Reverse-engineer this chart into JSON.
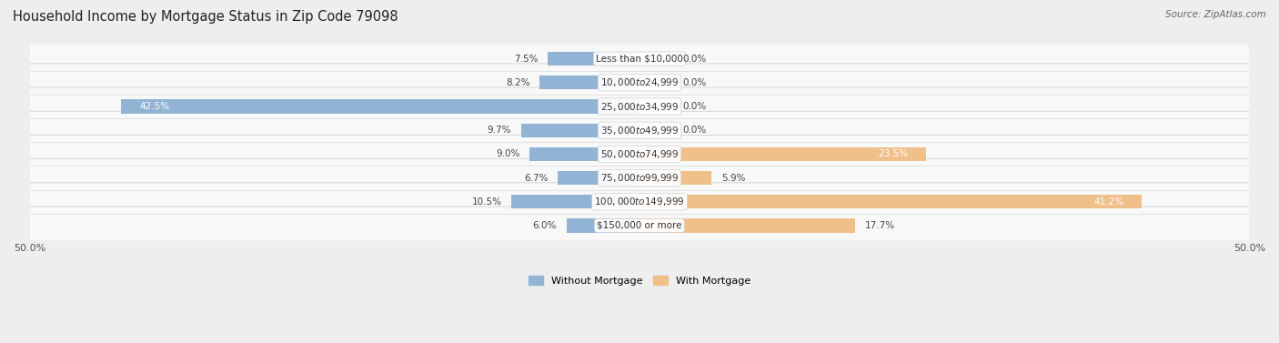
{
  "title": "Household Income by Mortgage Status in Zip Code 79098",
  "source": "Source: ZipAtlas.com",
  "categories": [
    "Less than $10,000",
    "$10,000 to $24,999",
    "$25,000 to $34,999",
    "$35,000 to $49,999",
    "$50,000 to $74,999",
    "$75,000 to $99,999",
    "$100,000 to $149,999",
    "$150,000 or more"
  ],
  "without_mortgage": [
    7.5,
    8.2,
    42.5,
    9.7,
    9.0,
    6.7,
    10.5,
    6.0
  ],
  "with_mortgage": [
    0.0,
    0.0,
    0.0,
    0.0,
    23.5,
    5.9,
    41.2,
    17.7
  ],
  "without_mortgage_color": "#92b4d4",
  "with_mortgage_color": "#f0c08a",
  "background_color": "#eeeeee",
  "row_bg_color": "#f8f8f8",
  "axis_limit": 50.0,
  "title_fontsize": 10.5,
  "label_fontsize": 7.5,
  "legend_fontsize": 8,
  "axis_tick_fontsize": 8
}
